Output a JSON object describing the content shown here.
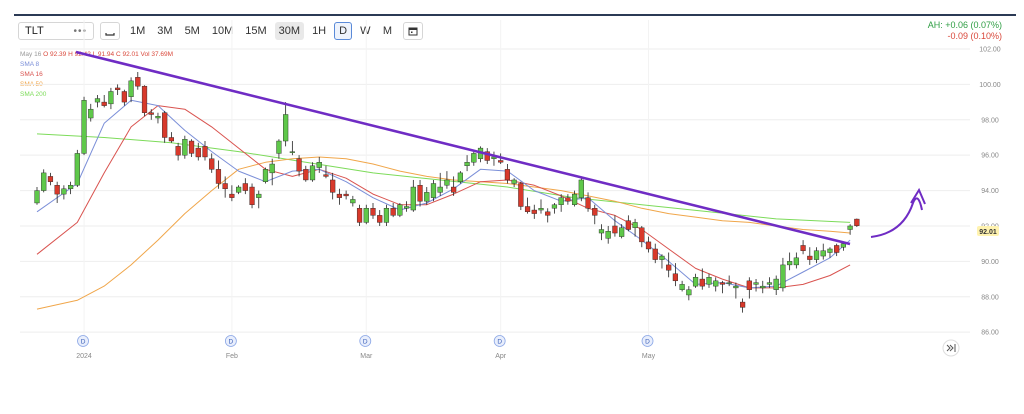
{
  "toolbar": {
    "symbol": "TLT",
    "timeframes": [
      {
        "label": "1M",
        "active": false
      },
      {
        "label": "3M",
        "active": false
      },
      {
        "label": "5M",
        "active": false
      },
      {
        "label": "10M",
        "active": false
      },
      {
        "label": "15M",
        "active": false
      },
      {
        "label": "30M",
        "active": true
      },
      {
        "label": "1H",
        "active": false
      },
      {
        "label": "D",
        "active": false,
        "boxed": true
      },
      {
        "label": "W",
        "active": false
      },
      {
        "label": "M",
        "active": false
      }
    ]
  },
  "after_hours": {
    "line1": "AH: +0.06 (0.07%)",
    "line2": "-0.09 (0.10%)"
  },
  "legend": {
    "date": "May 16",
    "o": "O 92.39",
    "h": "H 92.42",
    "l": "L 91.94",
    "c": "C 92.01",
    "vol": "Vol 37.69M",
    "sma": [
      {
        "label": "SMA 8",
        "color": "#7b8fd8"
      },
      {
        "label": "SMA 16",
        "color": "#d9534f"
      },
      {
        "label": "SMA 50",
        "color": "#f0a64a"
      },
      {
        "label": "SMA 200",
        "color": "#7ddb5a"
      }
    ]
  },
  "last_price": "92.01",
  "chart_data": {
    "type": "candlestick",
    "y_ticks": [
      "102.00",
      "100.00",
      "98.00",
      "96.00",
      "94.00",
      "92.00",
      "90.00",
      "88.00",
      "86.00"
    ],
    "ylim": [
      85.5,
      102.0
    ],
    "x_labels": [
      {
        "label": "2024",
        "index": 7
      },
      {
        "label": "Feb",
        "index": 29
      },
      {
        "label": "Mar",
        "index": 49
      },
      {
        "label": "Apr",
        "index": 69
      },
      {
        "label": "May",
        "index": 91
      }
    ],
    "dividend_markers": [
      7,
      29,
      49,
      69,
      91
    ],
    "candles": [
      [
        93.3,
        94.2,
        93.2,
        94.0
      ],
      [
        94.0,
        95.2,
        93.9,
        95.0
      ],
      [
        94.8,
        95.0,
        94.3,
        94.5
      ],
      [
        94.3,
        94.5,
        93.3,
        93.8
      ],
      [
        93.8,
        94.3,
        93.5,
        94.1
      ],
      [
        94.1,
        94.5,
        93.8,
        94.3
      ],
      [
        94.3,
        96.3,
        94.2,
        96.1
      ],
      [
        96.1,
        99.3,
        96.0,
        99.1
      ],
      [
        98.1,
        98.9,
        97.9,
        98.6
      ],
      [
        99.0,
        99.4,
        98.7,
        99.2
      ],
      [
        99.0,
        99.4,
        98.7,
        98.8
      ],
      [
        98.9,
        99.8,
        98.6,
        99.6
      ],
      [
        99.8,
        100.0,
        99.4,
        99.7
      ],
      [
        99.6,
        99.7,
        98.8,
        99.0
      ],
      [
        99.3,
        100.4,
        99.0,
        100.2
      ],
      [
        100.4,
        100.7,
        99.7,
        99.9
      ],
      [
        99.9,
        99.95,
        98.2,
        98.4
      ],
      [
        98.4,
        98.6,
        98.0,
        98.3
      ],
      [
        98.1,
        98.4,
        97.8,
        98.2
      ],
      [
        98.4,
        98.5,
        96.7,
        97.0
      ],
      [
        97.0,
        97.3,
        96.7,
        96.8
      ],
      [
        96.5,
        96.7,
        95.7,
        96.0
      ],
      [
        96.0,
        97.1,
        95.8,
        96.9
      ],
      [
        96.8,
        96.9,
        95.9,
        96.1
      ],
      [
        96.4,
        96.7,
        95.7,
        95.9
      ],
      [
        96.5,
        96.8,
        95.7,
        95.9
      ],
      [
        95.8,
        96.1,
        95.0,
        95.2
      ],
      [
        95.2,
        95.7,
        94.1,
        94.4
      ],
      [
        94.4,
        94.8,
        93.6,
        94.1
      ],
      [
        93.8,
        94.3,
        93.4,
        93.6
      ],
      [
        93.9,
        94.3,
        93.8,
        94.2
      ],
      [
        94.4,
        94.7,
        93.8,
        94.0
      ],
      [
        94.2,
        94.4,
        93.0,
        93.2
      ],
      [
        93.6,
        94.0,
        93.0,
        93.8
      ],
      [
        94.5,
        95.3,
        94.4,
        95.2
      ],
      [
        95.0,
        95.8,
        94.3,
        95.5
      ],
      [
        96.1,
        96.9,
        95.8,
        96.8
      ],
      [
        96.8,
        99.0,
        96.5,
        98.3
      ],
      [
        96.2,
        96.8,
        96.0,
        96.2
      ],
      [
        95.8,
        96.0,
        94.8,
        95.1
      ],
      [
        95.2,
        95.4,
        94.5,
        94.6
      ],
      [
        94.6,
        95.6,
        94.5,
        95.4
      ],
      [
        95.3,
        95.9,
        95.0,
        95.6
      ],
      [
        94.9,
        95.4,
        94.7,
        94.8
      ],
      [
        94.6,
        95.0,
        93.5,
        93.9
      ],
      [
        93.8,
        94.1,
        93.2,
        93.6
      ],
      [
        93.8,
        94.0,
        93.5,
        93.7
      ],
      [
        93.3,
        93.7,
        93.1,
        93.5
      ],
      [
        93.0,
        93.2,
        92.0,
        92.2
      ],
      [
        92.2,
        93.2,
        92.1,
        93.0
      ],
      [
        93.0,
        93.3,
        92.4,
        92.6
      ],
      [
        92.6,
        92.9,
        92.0,
        92.2
      ],
      [
        92.2,
        93.2,
        92.0,
        93.0
      ],
      [
        93.0,
        93.3,
        92.5,
        92.6
      ],
      [
        92.6,
        93.3,
        92.5,
        93.2
      ],
      [
        93.0,
        93.4,
        92.8,
        93.1
      ],
      [
        92.9,
        94.6,
        92.8,
        94.2
      ],
      [
        94.3,
        94.6,
        93.1,
        93.4
      ],
      [
        93.4,
        94.2,
        93.2,
        93.9
      ],
      [
        93.6,
        94.6,
        93.4,
        94.4
      ],
      [
        93.9,
        95.0,
        93.7,
        94.2
      ],
      [
        94.3,
        95.1,
        94.1,
        94.6
      ],
      [
        94.2,
        94.8,
        93.7,
        93.9
      ],
      [
        94.5,
        95.1,
        94.4,
        95.0
      ],
      [
        95.4,
        96.0,
        95.1,
        95.6
      ],
      [
        95.6,
        96.2,
        95.4,
        96.1
      ],
      [
        95.8,
        96.5,
        95.6,
        96.4
      ],
      [
        96.2,
        96.4,
        95.5,
        95.7
      ],
      [
        95.8,
        96.2,
        95.4,
        95.9
      ],
      [
        95.7,
        96.1,
        95.5,
        95.6
      ],
      [
        95.2,
        95.5,
        94.4,
        94.6
      ],
      [
        94.4,
        94.7,
        94.2,
        94.6
      ],
      [
        94.4,
        94.5,
        92.9,
        93.1
      ],
      [
        93.1,
        93.6,
        92.7,
        92.8
      ],
      [
        92.9,
        93.2,
        92.4,
        92.7
      ],
      [
        92.9,
        93.5,
        92.7,
        93.0
      ],
      [
        92.8,
        93.0,
        92.2,
        92.6
      ],
      [
        93.0,
        93.3,
        92.7,
        93.2
      ],
      [
        93.2,
        93.8,
        92.8,
        93.6
      ],
      [
        93.6,
        93.8,
        93.2,
        93.4
      ],
      [
        93.2,
        94.0,
        93.1,
        93.8
      ],
      [
        93.6,
        94.8,
        93.4,
        94.6
      ],
      [
        93.6,
        93.9,
        92.8,
        93.0
      ],
      [
        93.0,
        93.2,
        92.1,
        92.6
      ],
      [
        91.6,
        92.1,
        91.2,
        91.8
      ],
      [
        91.3,
        92.0,
        91.0,
        91.7
      ],
      [
        92.0,
        92.6,
        91.4,
        91.6
      ],
      [
        91.4,
        92.1,
        91.3,
        91.9
      ],
      [
        92.3,
        92.6,
        91.7,
        91.8
      ],
      [
        91.9,
        92.4,
        91.4,
        92.2
      ],
      [
        91.9,
        92.0,
        90.8,
        91.1
      ],
      [
        91.1,
        91.4,
        90.5,
        90.7
      ],
      [
        90.7,
        91.0,
        89.9,
        90.1
      ],
      [
        90.1,
        90.4,
        89.6,
        90.3
      ],
      [
        89.8,
        90.5,
        89.1,
        89.5
      ],
      [
        89.3,
        89.9,
        88.6,
        88.9
      ],
      [
        88.4,
        88.9,
        88.3,
        88.7
      ],
      [
        88.1,
        88.6,
        87.8,
        88.4
      ],
      [
        88.6,
        89.3,
        88.5,
        89.1
      ],
      [
        89.0,
        89.6,
        88.4,
        88.6
      ],
      [
        88.7,
        89.3,
        88.5,
        89.1
      ],
      [
        88.6,
        89.1,
        88.3,
        88.9
      ],
      [
        88.8,
        88.9,
        88.2,
        88.7
      ],
      [
        88.8,
        89.2,
        88.6,
        88.8
      ],
      [
        88.5,
        88.8,
        87.9,
        88.6
      ],
      [
        87.7,
        87.9,
        87.1,
        87.4
      ],
      [
        88.9,
        89.1,
        87.9,
        88.4
      ],
      [
        88.7,
        89.0,
        88.3,
        88.8
      ],
      [
        88.5,
        88.9,
        88.2,
        88.6
      ],
      [
        88.7,
        89.1,
        88.5,
        88.8
      ],
      [
        88.4,
        89.2,
        88.1,
        89.0
      ],
      [
        88.5,
        90.2,
        88.3,
        89.8
      ],
      [
        89.8,
        90.5,
        89.5,
        90.0
      ],
      [
        89.8,
        90.5,
        89.6,
        90.2
      ],
      [
        90.9,
        91.2,
        90.4,
        90.6
      ],
      [
        90.3,
        90.8,
        89.8,
        90.1
      ],
      [
        90.1,
        90.8,
        89.9,
        90.6
      ],
      [
        90.3,
        91.0,
        90.1,
        90.6
      ],
      [
        90.5,
        90.8,
        90.2,
        90.7
      ],
      [
        90.9,
        91.0,
        90.3,
        90.5
      ],
      [
        90.8,
        91.1,
        90.6,
        91.0
      ],
      [
        91.8,
        92.1,
        91.5,
        92.0
      ],
      [
        92.39,
        92.42,
        91.94,
        92.01
      ]
    ],
    "sma8": [
      [
        0,
        92.8
      ],
      [
        6,
        94.4
      ],
      [
        10,
        97.8
      ],
      [
        14,
        99.1
      ],
      [
        18,
        98.8
      ],
      [
        22,
        97.4
      ],
      [
        26,
        96.2
      ],
      [
        30,
        95.1
      ],
      [
        34,
        94.5
      ],
      [
        38,
        95.1
      ],
      [
        42,
        95.2
      ],
      [
        46,
        94.5
      ],
      [
        50,
        93.6
      ],
      [
        54,
        92.9
      ],
      [
        58,
        93.3
      ],
      [
        62,
        94.1
      ],
      [
        66,
        95.2
      ],
      [
        70,
        95.1
      ],
      [
        74,
        94.0
      ],
      [
        78,
        93.4
      ],
      [
        82,
        93.6
      ],
      [
        86,
        92.3
      ],
      [
        90,
        91.2
      ],
      [
        94,
        90.0
      ],
      [
        98,
        88.7
      ],
      [
        102,
        88.8
      ],
      [
        106,
        88.5
      ],
      [
        110,
        88.6
      ],
      [
        114,
        89.4
      ],
      [
        118,
        90.2
      ],
      [
        121,
        91.2
      ]
    ],
    "sma16": [
      [
        0,
        90.4
      ],
      [
        6,
        92.2
      ],
      [
        10,
        95.0
      ],
      [
        14,
        97.6
      ],
      [
        18,
        98.8
      ],
      [
        22,
        98.6
      ],
      [
        26,
        97.6
      ],
      [
        30,
        96.4
      ],
      [
        34,
        95.2
      ],
      [
        38,
        94.8
      ],
      [
        42,
        95.2
      ],
      [
        46,
        94.7
      ],
      [
        50,
        93.8
      ],
      [
        54,
        93.2
      ],
      [
        58,
        93.2
      ],
      [
        62,
        93.8
      ],
      [
        66,
        94.5
      ],
      [
        70,
        94.6
      ],
      [
        74,
        94.3
      ],
      [
        78,
        93.7
      ],
      [
        82,
        93.0
      ],
      [
        86,
        92.6
      ],
      [
        90,
        91.8
      ],
      [
        94,
        90.7
      ],
      [
        98,
        89.6
      ],
      [
        102,
        89.0
      ],
      [
        106,
        88.5
      ],
      [
        110,
        88.5
      ],
      [
        114,
        88.7
      ],
      [
        118,
        89.2
      ],
      [
        121,
        89.8
      ]
    ],
    "sma50": [
      [
        0,
        87.3
      ],
      [
        6,
        87.8
      ],
      [
        10,
        88.6
      ],
      [
        14,
        89.8
      ],
      [
        18,
        91.2
      ],
      [
        22,
        92.7
      ],
      [
        26,
        94.0
      ],
      [
        30,
        95.2
      ],
      [
        34,
        95.6
      ],
      [
        38,
        95.8
      ],
      [
        42,
        95.9
      ],
      [
        46,
        95.8
      ],
      [
        50,
        95.5
      ],
      [
        54,
        95.1
      ],
      [
        58,
        94.8
      ],
      [
        62,
        94.6
      ],
      [
        66,
        94.5
      ],
      [
        70,
        94.4
      ],
      [
        74,
        94.2
      ],
      [
        78,
        94.0
      ],
      [
        82,
        93.7
      ],
      [
        86,
        93.4
      ],
      [
        90,
        93.0
      ],
      [
        94,
        92.7
      ],
      [
        98,
        92.5
      ],
      [
        102,
        92.3
      ],
      [
        106,
        92.2
      ],
      [
        110,
        92.0
      ],
      [
        114,
        91.8
      ],
      [
        118,
        91.7
      ],
      [
        121,
        91.6
      ]
    ],
    "sma200": [
      [
        0,
        97.2
      ],
      [
        10,
        97.0
      ],
      [
        20,
        96.7
      ],
      [
        30,
        96.2
      ],
      [
        40,
        95.6
      ],
      [
        50,
        95.0
      ],
      [
        60,
        94.6
      ],
      [
        70,
        94.2
      ],
      [
        80,
        93.6
      ],
      [
        90,
        93.2
      ],
      [
        100,
        92.8
      ],
      [
        110,
        92.4
      ],
      [
        121,
        92.2
      ]
    ]
  }
}
